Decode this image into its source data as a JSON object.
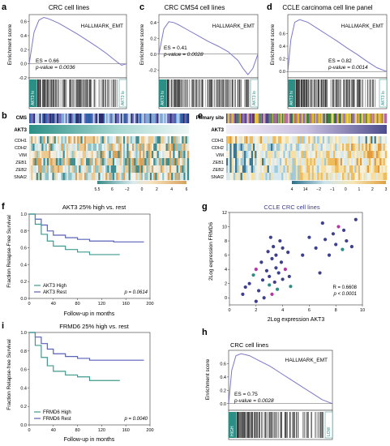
{
  "panels": {
    "a": {
      "letter": "a",
      "title": "CRC cell lines",
      "gene_set": "HALLMARK_EMT",
      "es": "ES = 0.66",
      "pval": "p-value = 0.0036",
      "high": "AKT3 hi",
      "low": "AKT3 lo"
    },
    "c": {
      "letter": "c",
      "title": "CRC CMS4 cell lines",
      "gene_set": "HALLMARK_EMT",
      "es": "ES = 0.41",
      "pval": "p-value = 0.0028",
      "high": "AKT3 hi",
      "low": "AKT3 lo"
    },
    "d": {
      "letter": "d",
      "title": "CCLE carcinoma cell line panel",
      "gene_set": "HALLMARK_EMT",
      "es": "ES = 0.82",
      "pval": "p-value = 0.0014",
      "high": "AKT3 hi",
      "low": "AKT3 lo"
    },
    "h": {
      "letter": "h",
      "title": "CRC cell lines",
      "gene_set": "HALLMARK_EMT",
      "es": "ES = 0.75",
      "pval": "p-value = 0.0028",
      "high": "HIGH",
      "low": "LOW"
    },
    "b": {
      "letter": "b",
      "row1": "CMS",
      "row2": "AKT3",
      "genes": [
        "CDH1",
        "CDH2",
        "VIM",
        "ZEB1",
        "ZEB2",
        "SNAI2"
      ],
      "scale": [
        "5.5",
        "6",
        "−2",
        "0",
        "2",
        "4",
        "6"
      ]
    },
    "e": {
      "letter": "e",
      "row1": "Primary site",
      "row2": "AKT3",
      "genes": [
        "CDH1",
        "CDH2",
        "VIM",
        "ZEB1",
        "ZEB2",
        "SNAI2"
      ],
      "scale": [
        "4",
        "14",
        "−2",
        "−1",
        "0",
        "1",
        "2",
        "3"
      ]
    },
    "f": {
      "letter": "f",
      "title": "AKT3 25% high vs. rest",
      "ylabel": "Fraction Relapse-Free Survival",
      "xlabel": "Follow-up in months",
      "legend_high": "AKT3 High",
      "legend_rest": "AKT3 Rest",
      "pval": "p = 0.0614"
    },
    "g": {
      "letter": "g",
      "title": "CCLE CRC cell lines",
      "ylabel": "2Log expression FRMD6",
      "xlabel": "2Log expression AKT3",
      "r": "R = 0.6608",
      "pval": "p < 0.0001"
    },
    "i": {
      "letter": "i",
      "title": "FRMD6 25% high vs. rest",
      "ylabel": "Fraction Relapse-free Survival",
      "xlabel": "Follow-up in months",
      "legend_high": "FRMD6 High",
      "legend_rest": "FRMD6 Rest",
      "pval": "p = 0.0040"
    }
  },
  "axes": {
    "es_ticks": [
      "0.6",
      "0.4",
      "0.2",
      "0.0",
      "-0.2"
    ],
    "es_ylabel": "Enrichment score",
    "km_y_ticks": [
      "1.0",
      "0.8",
      "0.6",
      "0.4",
      "0.2",
      "0.0"
    ],
    "km_x_ticks": [
      "0",
      "40",
      "80",
      "120",
      "160",
      "200"
    ],
    "scatter_y_ticks": [
      "12",
      "10",
      "8",
      "6",
      "4",
      "2",
      "0"
    ],
    "scatter_x_ticks": [
      "0",
      "2",
      "4",
      "6",
      "8",
      "10"
    ]
  },
  "colors": {
    "curve": "#7b78c8",
    "teal": "#2b8f86",
    "km_high": "#3f9a8e",
    "km_rest": "#5a62b8",
    "km_red": "#d9534f"
  },
  "chart_data": [
    {
      "type": "line",
      "panel": "a",
      "ylabel": "Enrichment score",
      "ylim": [
        -0.2,
        0.7
      ],
      "x": [
        0,
        0.05,
        0.1,
        0.15,
        0.2,
        0.3,
        0.4,
        0.5,
        0.6,
        0.7,
        0.8,
        0.9,
        0.95,
        1.0
      ],
      "y": [
        0,
        0.45,
        0.62,
        0.66,
        0.64,
        0.58,
        0.5,
        0.42,
        0.33,
        0.24,
        0.14,
        0.03,
        -0.02,
        0
      ]
    },
    {
      "type": "line",
      "panel": "c",
      "ylabel": "Enrichment score",
      "ylim": [
        -0.3,
        0.5
      ],
      "x": [
        0,
        0.05,
        0.1,
        0.15,
        0.2,
        0.3,
        0.4,
        0.5,
        0.6,
        0.7,
        0.8,
        0.85,
        0.9,
        0.95,
        1.0
      ],
      "y": [
        0,
        0.32,
        0.41,
        0.4,
        0.37,
        0.3,
        0.23,
        0.16,
        0.1,
        0.03,
        -0.08,
        -0.18,
        -0.26,
        -0.18,
        0
      ]
    },
    {
      "type": "line",
      "panel": "d",
      "ylabel": "Enrichment score",
      "ylim": [
        -0.1,
        0.9
      ],
      "x": [
        0,
        0.03,
        0.07,
        0.12,
        0.2,
        0.3,
        0.4,
        0.5,
        0.6,
        0.7,
        0.8,
        0.9,
        1.0
      ],
      "y": [
        0,
        0.5,
        0.78,
        0.82,
        0.78,
        0.68,
        0.58,
        0.48,
        0.37,
        0.27,
        0.16,
        0.06,
        0
      ]
    },
    {
      "type": "line",
      "panel": "h",
      "ylabel": "Enrichment score",
      "ylim": [
        -0.1,
        0.8
      ],
      "x": [
        0,
        0.03,
        0.07,
        0.12,
        0.2,
        0.3,
        0.4,
        0.5,
        0.6,
        0.7,
        0.8,
        0.9,
        1.0
      ],
      "y": [
        0,
        0.5,
        0.72,
        0.75,
        0.72,
        0.64,
        0.56,
        0.46,
        0.36,
        0.26,
        0.16,
        0.06,
        0
      ]
    },
    {
      "type": "line",
      "panel": "f",
      "xlabel": "Follow-up in months",
      "ylabel": "Fraction Relapse-Free Survival",
      "xlim": [
        0,
        200
      ],
      "ylim": [
        0,
        1
      ],
      "series": [
        {
          "name": "AKT3 High",
          "x": [
            0,
            10,
            20,
            30,
            40,
            60,
            80,
            100,
            120,
            150
          ],
          "y": [
            1,
            0.88,
            0.76,
            0.68,
            0.62,
            0.58,
            0.55,
            0.52,
            0.52,
            0.52
          ]
        },
        {
          "name": "AKT3 Rest",
          "x": [
            0,
            10,
            20,
            30,
            40,
            60,
            80,
            100,
            140,
            190
          ],
          "y": [
            1,
            0.94,
            0.87,
            0.8,
            0.75,
            0.72,
            0.7,
            0.68,
            0.67,
            0.67
          ]
        }
      ]
    },
    {
      "type": "line",
      "panel": "i",
      "xlabel": "Follow-up in months",
      "ylabel": "Fraction Relapse-free Survival",
      "xlim": [
        0,
        200
      ],
      "ylim": [
        0,
        1
      ],
      "series": [
        {
          "name": "FRMD6 High",
          "x": [
            0,
            10,
            20,
            30,
            40,
            60,
            80,
            100,
            120,
            150
          ],
          "y": [
            1,
            0.86,
            0.73,
            0.64,
            0.58,
            0.54,
            0.52,
            0.48,
            0.48,
            0.48
          ]
        },
        {
          "name": "FRMD6 Rest",
          "x": [
            0,
            10,
            20,
            30,
            40,
            60,
            80,
            100,
            140,
            190
          ],
          "y": [
            1,
            0.95,
            0.88,
            0.82,
            0.77,
            0.74,
            0.72,
            0.7,
            0.7,
            0.7
          ]
        }
      ]
    },
    {
      "type": "scatter",
      "panel": "g",
      "xlabel": "2Log expression AKT3",
      "ylabel": "2Log expression FRMD6",
      "xlim": [
        0,
        10
      ],
      "ylim": [
        -1,
        12
      ],
      "points": [
        [
          1.0,
          0.5
        ],
        [
          1.2,
          1.5
        ],
        [
          1.5,
          2.0
        ],
        [
          1.8,
          3.2
        ],
        [
          2.0,
          -0.5
        ],
        [
          2.0,
          4.0
        ],
        [
          2.2,
          1.0
        ],
        [
          2.4,
          5.0
        ],
        [
          2.5,
          2.5
        ],
        [
          2.6,
          0.0
        ],
        [
          2.8,
          3.8
        ],
        [
          2.9,
          6.5
        ],
        [
          3.0,
          1.8
        ],
        [
          3.0,
          3.0
        ],
        [
          3.1,
          8.5
        ],
        [
          3.2,
          5.5
        ],
        [
          3.2,
          0.5
        ],
        [
          3.3,
          7.2
        ],
        [
          3.4,
          2.2
        ],
        [
          3.5,
          4.2
        ],
        [
          3.5,
          6.0
        ],
        [
          3.6,
          1.2
        ],
        [
          3.7,
          3.5
        ],
        [
          3.8,
          8.0
        ],
        [
          3.9,
          5.0
        ],
        [
          4.0,
          2.6
        ],
        [
          4.0,
          7.0
        ],
        [
          4.2,
          4.0
        ],
        [
          4.4,
          6.4
        ],
        [
          4.5,
          3.0
        ],
        [
          4.6,
          1.6
        ],
        [
          6.0,
          8.5
        ],
        [
          6.5,
          7.0
        ],
        [
          7.0,
          10.5
        ],
        [
          7.2,
          8.2
        ],
        [
          7.5,
          6.0
        ],
        [
          7.8,
          9.0
        ],
        [
          8.0,
          7.5
        ],
        [
          8.2,
          10.0
        ],
        [
          8.5,
          6.8
        ],
        [
          8.6,
          9.5
        ],
        [
          8.8,
          8.0
        ],
        [
          9.2,
          7.2
        ],
        [
          9.5,
          11.0
        ],
        [
          6.8,
          3.5
        ],
        [
          5.5,
          6.0
        ]
      ]
    }
  ]
}
